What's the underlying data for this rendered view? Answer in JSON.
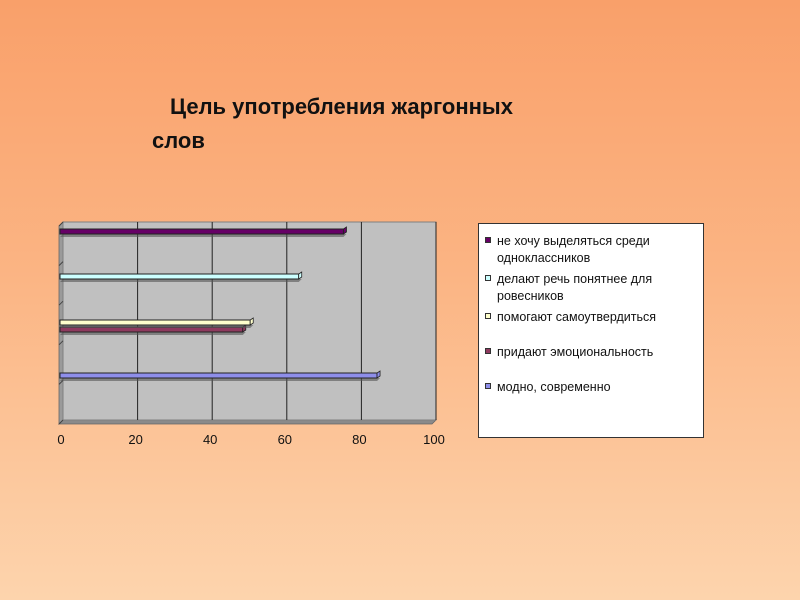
{
  "slide": {
    "title_line1": "Цель употребления жаргонных",
    "title_line2": "слов"
  },
  "chart_data": {
    "type": "bar",
    "orientation": "horizontal",
    "xlim": [
      0,
      100
    ],
    "xticks": [
      "0",
      "20",
      "40",
      "60",
      "80",
      "100"
    ],
    "grid": true,
    "legend_position": "right",
    "series": [
      {
        "name": "модно, современно",
        "value": 85,
        "color": "#8e8eea"
      },
      {
        "name": "придают эмоциональность",
        "value": 49,
        "color": "#8e3a5e"
      },
      {
        "name": "помогают самоутвердиться",
        "value": 51,
        "color": "#ffffcc"
      },
      {
        "name": "делают речь понятнее для ровесников",
        "value": 64,
        "color": "#ccffff"
      },
      {
        "name": "не хочу выделяться среди одноклассников",
        "value": 76,
        "color": "#660066"
      }
    ],
    "legend": [
      {
        "label": "не хочу выделяться среди одноклассников",
        "color": "#660066"
      },
      {
        "label": "делают речь понятнее для ровесников",
        "color": "#ccffff"
      },
      {
        "label": "помогают самоутвердиться",
        "color": "#ffffcc"
      },
      {
        "label": "придают эмоциональность",
        "color": "#8e3a5e"
      },
      {
        "label": "модно, современно",
        "color": "#8e8eea"
      }
    ]
  }
}
